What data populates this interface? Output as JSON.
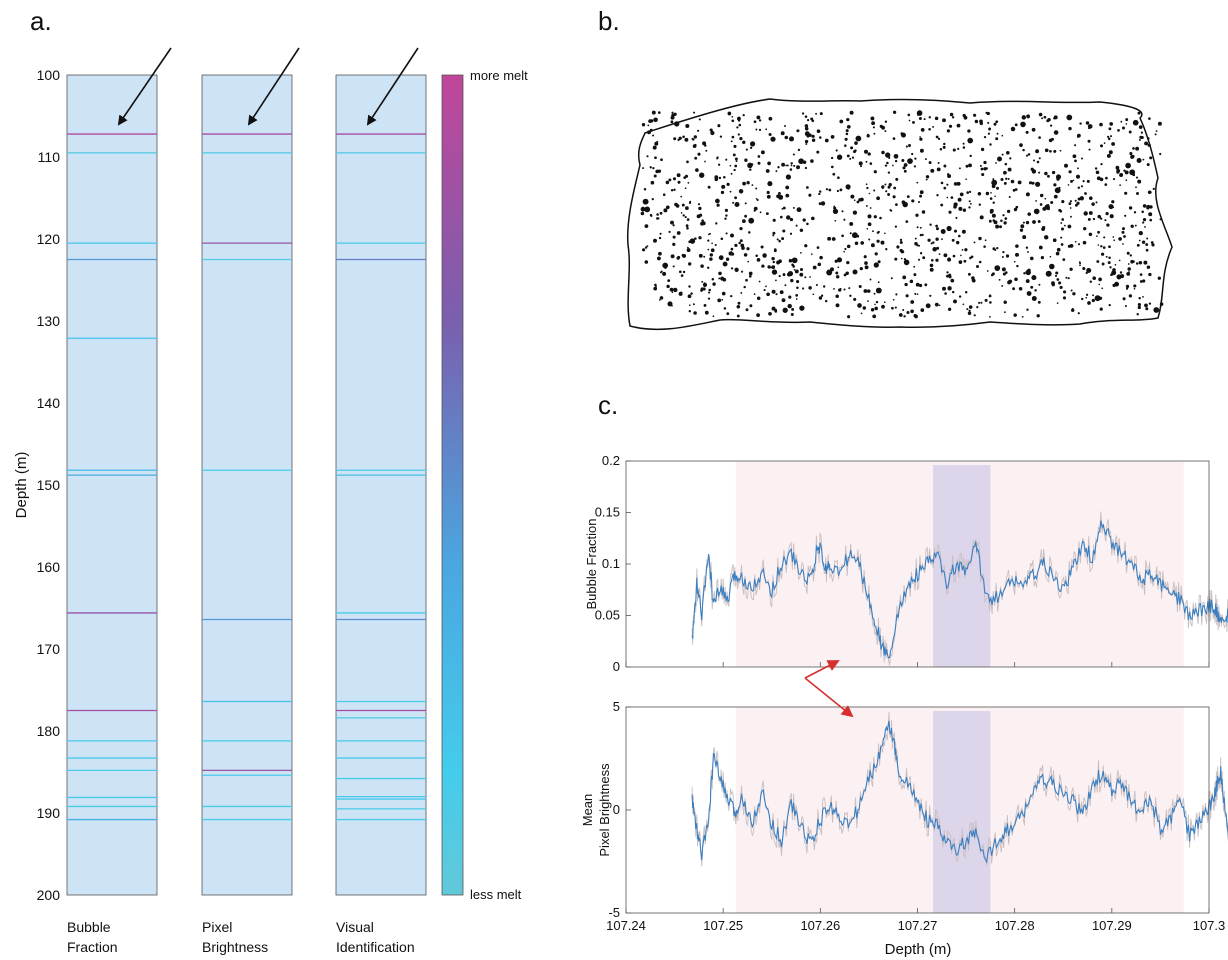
{
  "panels": {
    "a": "a.",
    "b": "b.",
    "c": "c."
  },
  "chart_data": [
    {
      "type": "table",
      "panel": "a",
      "ylabel": "Depth (m)",
      "ylim": [
        100,
        200
      ],
      "y_ticks": [
        "100",
        "110",
        "120",
        "130",
        "140",
        "150",
        "160",
        "170",
        "180",
        "190",
        "200"
      ],
      "colorbar": {
        "top_label": "more melt",
        "bottom_label": "less melt",
        "colors": [
          "#c0469a",
          "#7a5fae",
          "#4aa7e0",
          "#44ccec",
          "#62c8d8"
        ]
      },
      "columns": [
        {
          "label": [
            "Bubble",
            "Fraction"
          ],
          "layers": [
            {
              "depth": 107.2,
              "melt": 0.95
            },
            {
              "depth": 109.5,
              "melt": 0.15
            },
            {
              "depth": 120.5,
              "melt": 0.3
            },
            {
              "depth": 122.5,
              "melt": 0.55
            },
            {
              "depth": 132.1,
              "melt": 0.3
            },
            {
              "depth": 148.2,
              "melt": 0.35
            },
            {
              "depth": 148.8,
              "melt": 0.45
            },
            {
              "depth": 165.6,
              "melt": 0.85
            },
            {
              "depth": 177.5,
              "melt": 0.9
            },
            {
              "depth": 181.2,
              "melt": 0.2
            },
            {
              "depth": 183.3,
              "melt": 0.2
            },
            {
              "depth": 184.8,
              "melt": 0.2
            },
            {
              "depth": 188.1,
              "melt": 0.2
            },
            {
              "depth": 189.2,
              "melt": 0.2
            },
            {
              "depth": 190.8,
              "melt": 0.45
            }
          ]
        },
        {
          "label": [
            "Pixel",
            "Brightness"
          ],
          "layers": [
            {
              "depth": 107.2,
              "melt": 0.9
            },
            {
              "depth": 109.5,
              "melt": 0.15
            },
            {
              "depth": 120.5,
              "melt": 0.85
            },
            {
              "depth": 122.5,
              "melt": 0.15
            },
            {
              "depth": 148.2,
              "melt": 0.2
            },
            {
              "depth": 166.4,
              "melt": 0.55
            },
            {
              "depth": 176.4,
              "melt": 0.35
            },
            {
              "depth": 181.2,
              "melt": 0.2
            },
            {
              "depth": 184.8,
              "melt": 0.85
            },
            {
              "depth": 185.4,
              "melt": 0.2
            },
            {
              "depth": 189.2,
              "melt": 0.2
            },
            {
              "depth": 190.8,
              "melt": 0.2
            }
          ]
        },
        {
          "label": [
            "Visual",
            "Identification"
          ],
          "layers": [
            {
              "depth": 107.2,
              "melt": 0.9
            },
            {
              "depth": 109.5,
              "melt": 0.15
            },
            {
              "depth": 120.5,
              "melt": 0.2
            },
            {
              "depth": 122.5,
              "melt": 0.65
            },
            {
              "depth": 148.2,
              "melt": 0.2
            },
            {
              "depth": 148.8,
              "melt": 0.35
            },
            {
              "depth": 165.6,
              "melt": 0.2
            },
            {
              "depth": 166.4,
              "melt": 0.6
            },
            {
              "depth": 176.4,
              "melt": 0.2
            },
            {
              "depth": 177.5,
              "melt": 0.9
            },
            {
              "depth": 178.4,
              "melt": 0.2
            },
            {
              "depth": 181.2,
              "melt": 0.2
            },
            {
              "depth": 183.3,
              "melt": 0.2
            },
            {
              "depth": 185.8,
              "melt": 0.2
            },
            {
              "depth": 188.0,
              "melt": 0.3
            },
            {
              "depth": 188.3,
              "melt": 0.2
            },
            {
              "depth": 189.5,
              "melt": 0.2
            },
            {
              "depth": 190.8,
              "melt": 0.2
            }
          ]
        }
      ]
    },
    {
      "type": "line",
      "panel": "c-top",
      "ylabel": "Bubble Fraction",
      "xlim": [
        107.24,
        107.3
      ],
      "ylim": [
        0,
        0.2
      ],
      "y_ticks": [
        "0",
        "0.05",
        "0.1",
        "0.15",
        "0.2"
      ],
      "highlight_bands": [
        {
          "from": 107.2513,
          "to": 107.2974,
          "color": "#fbf1f2"
        },
        {
          "from": 107.2716,
          "to": 107.2775,
          "color": "#ddd5ea"
        }
      ],
      "series": [
        {
          "color": "#3b7fc0",
          "x": [
            107.2468,
            107.2473,
            107.2478,
            107.2485,
            107.249,
            107.2497,
            107.2505,
            107.2512,
            107.252,
            107.253,
            107.254,
            107.255,
            107.256,
            107.257,
            107.258,
            107.259,
            107.2598,
            107.2605,
            107.261,
            107.262,
            107.263,
            107.264,
            107.265,
            107.2658,
            107.2663,
            107.267,
            107.268,
            107.269,
            107.27,
            107.271,
            107.272,
            107.273,
            107.274,
            107.275,
            107.276,
            107.2768,
            107.2778,
            107.279,
            107.28,
            107.281,
            107.282,
            107.283,
            107.284,
            107.285,
            107.286,
            107.287,
            107.288,
            107.289,
            107.29,
            107.291,
            107.292,
            107.293,
            107.294,
            107.295,
            107.296,
            107.297,
            107.298,
            107.299,
            107.3,
            107.3007,
            107.3012,
            107.3018,
            107.3022
          ],
          "y": [
            0.025,
            0.08,
            0.05,
            0.11,
            0.06,
            0.075,
            0.065,
            0.09,
            0.085,
            0.08,
            0.09,
            0.075,
            0.1,
            0.11,
            0.09,
            0.085,
            0.12,
            0.095,
            0.1,
            0.09,
            0.11,
            0.1,
            0.065,
            0.04,
            0.02,
            0.01,
            0.05,
            0.08,
            0.09,
            0.1,
            0.11,
            0.08,
            0.1,
            0.09,
            0.12,
            0.08,
            0.065,
            0.075,
            0.085,
            0.08,
            0.09,
            0.1,
            0.085,
            0.075,
            0.095,
            0.12,
            0.105,
            0.14,
            0.12,
            0.11,
            0.1,
            0.085,
            0.09,
            0.08,
            0.07,
            0.065,
            0.05,
            0.055,
            0.06,
            0.055,
            0.045,
            0.05,
            0.05
          ]
        }
      ]
    },
    {
      "type": "line",
      "panel": "c-bottom",
      "ylabel": [
        "Mean",
        "Pixel Brightness"
      ],
      "xlabel": "Depth (m)",
      "xlim": [
        107.24,
        107.3
      ],
      "ylim": [
        -5,
        5
      ],
      "x_ticks": [
        "107.24",
        "107.25",
        "107.26",
        "107.27",
        "107.28",
        "107.29",
        "107.3"
      ],
      "y_ticks": [
        "-5",
        "0",
        "5"
      ],
      "highlight_bands": [
        {
          "from": 107.2513,
          "to": 107.2974,
          "color": "#fbf1f2"
        },
        {
          "from": 107.2716,
          "to": 107.2775,
          "color": "#ddd5ea"
        }
      ],
      "series": [
        {
          "color": "#3b7fc0",
          "x": [
            107.2468,
            107.2473,
            107.2478,
            107.2485,
            107.249,
            107.2497,
            107.2505,
            107.2512,
            107.252,
            107.253,
            107.254,
            107.255,
            107.256,
            107.257,
            107.258,
            107.259,
            107.26,
            107.261,
            107.262,
            107.263,
            107.264,
            107.265,
            107.266,
            107.2668,
            107.2675,
            107.268,
            107.269,
            107.27,
            107.271,
            107.272,
            107.273,
            107.274,
            107.275,
            107.276,
            107.277,
            107.278,
            107.279,
            107.28,
            107.281,
            107.282,
            107.283,
            107.284,
            107.285,
            107.286,
            107.287,
            107.288,
            107.289,
            107.29,
            107.291,
            107.292,
            107.293,
            107.294,
            107.295,
            107.296,
            107.297,
            107.298,
            107.299,
            107.3,
            107.3007,
            107.3012,
            107.3018,
            107.3022
          ],
          "y": [
            0.5,
            -1,
            -2.2,
            -0.5,
            2.6,
            1.5,
            0.5,
            -0.2,
            0.6,
            -0.5,
            0.8,
            -0.6,
            -1.5,
            0.3,
            -0.8,
            -1.6,
            -0.5,
            0.2,
            -0.3,
            -0.8,
            0.2,
            1.5,
            2.5,
            4.3,
            3.5,
            2,
            1.2,
            0.5,
            -0.5,
            -0.8,
            -1.6,
            -2,
            -1.5,
            -1.2,
            -2.5,
            -1.6,
            -1,
            -0.8,
            0,
            1,
            1.5,
            1.2,
            0.7,
            0.5,
            -0.3,
            1.2,
            1.8,
            0.9,
            1.3,
            0.4,
            -0.2,
            0.6,
            -1,
            -0.5,
            0.5,
            -1.3,
            -0.5,
            0.1,
            1,
            1.8,
            -0.5,
            -2
          ]
        }
      ]
    }
  ]
}
